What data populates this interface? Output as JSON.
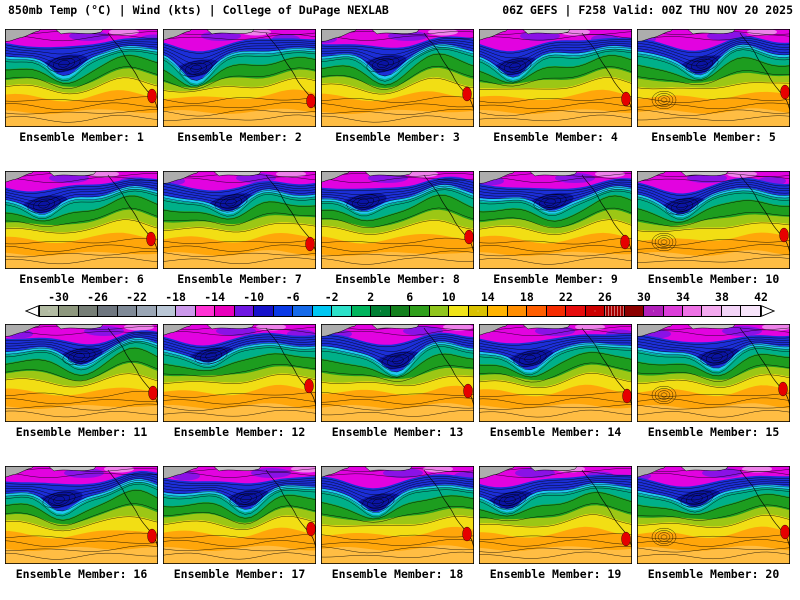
{
  "header": {
    "left": "850mb Temp (°C) | Wind (kts) | College of DuPage NEXLAB",
    "right": "06Z GEFS | F258 Valid: 00Z THU NOV 20 2025"
  },
  "panel_caption_prefix": "Ensemble Member:",
  "rows": [
    {
      "members": [
        1,
        2,
        3,
        4,
        5
      ]
    },
    {
      "members": [
        6,
        7,
        8,
        9,
        10
      ]
    },
    {
      "members": [
        11,
        12,
        13,
        14,
        15
      ]
    },
    {
      "members": [
        16,
        17,
        18,
        19,
        20
      ]
    }
  ],
  "panels": [
    {
      "member": 1,
      "caption": "Ensemble Member: 1"
    },
    {
      "member": 2,
      "caption": "Ensemble Member: 2"
    },
    {
      "member": 3,
      "caption": "Ensemble Member: 3"
    },
    {
      "member": 4,
      "caption": "Ensemble Member: 4"
    },
    {
      "member": 5,
      "caption": "Ensemble Member: 5"
    },
    {
      "member": 6,
      "caption": "Ensemble Member: 6"
    },
    {
      "member": 7,
      "caption": "Ensemble Member: 7"
    },
    {
      "member": 8,
      "caption": "Ensemble Member: 8"
    },
    {
      "member": 9,
      "caption": "Ensemble Member: 9"
    },
    {
      "member": 10,
      "caption": "Ensemble Member: 10"
    },
    {
      "member": 11,
      "caption": "Ensemble Member: 11"
    },
    {
      "member": 12,
      "caption": "Ensemble Member: 12"
    },
    {
      "member": 13,
      "caption": "Ensemble Member: 13"
    },
    {
      "member": 14,
      "caption": "Ensemble Member: 14"
    },
    {
      "member": 15,
      "caption": "Ensemble Member: 15"
    },
    {
      "member": 16,
      "caption": "Ensemble Member: 16"
    },
    {
      "member": 17,
      "caption": "Ensemble Member: 17"
    },
    {
      "member": 18,
      "caption": "Ensemble Member: 18"
    },
    {
      "member": 19,
      "caption": "Ensemble Member: 19"
    },
    {
      "member": 20,
      "caption": "Ensemble Member: 20"
    }
  ],
  "colorbar": {
    "unit": "°C",
    "range": [
      -32,
      42
    ],
    "tick_values": [
      -30,
      -26,
      -22,
      -18,
      -14,
      -10,
      -6,
      -2,
      2,
      6,
      10,
      14,
      18,
      22,
      26,
      30,
      34,
      38,
      42
    ],
    "arrow_color": "#ffffff",
    "outline_color": "#000000",
    "segments": [
      {
        "from": -32,
        "to": -30,
        "color": "#b2bba2",
        "pattern": "stipple"
      },
      {
        "from": -30,
        "to": -28,
        "color": "#8e987e",
        "pattern": "none"
      },
      {
        "from": -28,
        "to": -26,
        "color": "#767e76",
        "pattern": "none"
      },
      {
        "from": -26,
        "to": -24,
        "color": "#6e767f",
        "pattern": "none"
      },
      {
        "from": -24,
        "to": -22,
        "color": "#7f8a97",
        "pattern": "none"
      },
      {
        "from": -22,
        "to": -20,
        "color": "#9aa6b5",
        "pattern": "none"
      },
      {
        "from": -20,
        "to": -18,
        "color": "#bac7d6",
        "pattern": "none"
      },
      {
        "from": -18,
        "to": -16,
        "color": "#cc98eb",
        "pattern": "none"
      },
      {
        "from": -16,
        "to": -14,
        "color": "#ff32d4",
        "pattern": "none"
      },
      {
        "from": -14,
        "to": -12,
        "color": "#e800bc",
        "pattern": "none"
      },
      {
        "from": -12,
        "to": -10,
        "color": "#6f17e2",
        "pattern": "none"
      },
      {
        "from": -10,
        "to": -8,
        "color": "#1612ca",
        "pattern": "none"
      },
      {
        "from": -8,
        "to": -6,
        "color": "#0a3ae6",
        "pattern": "none"
      },
      {
        "from": -6,
        "to": -4,
        "color": "#156ae9",
        "pattern": "none"
      },
      {
        "from": -4,
        "to": -2,
        "color": "#00c7f2",
        "pattern": "none"
      },
      {
        "from": -2,
        "to": 0,
        "color": "#2de1c9",
        "pattern": "none"
      },
      {
        "from": 0,
        "to": 2,
        "color": "#00b45c",
        "pattern": "none"
      },
      {
        "from": 2,
        "to": 4,
        "color": "#008034",
        "pattern": "stipple"
      },
      {
        "from": 4,
        "to": 6,
        "color": "#13801d",
        "pattern": "none"
      },
      {
        "from": 6,
        "to": 8,
        "color": "#2f9f1b",
        "pattern": "none"
      },
      {
        "from": 8,
        "to": 10,
        "color": "#90c51c",
        "pattern": "none"
      },
      {
        "from": 10,
        "to": 12,
        "color": "#f0e418",
        "pattern": "none"
      },
      {
        "from": 12,
        "to": 14,
        "color": "#d9c100",
        "pattern": "stipple"
      },
      {
        "from": 14,
        "to": 16,
        "color": "#ffb300",
        "pattern": "none"
      },
      {
        "from": 16,
        "to": 18,
        "color": "#ff8d00",
        "pattern": "none"
      },
      {
        "from": 18,
        "to": 20,
        "color": "#ff5e00",
        "pattern": "none"
      },
      {
        "from": 20,
        "to": 22,
        "color": "#f52b00",
        "pattern": "none"
      },
      {
        "from": 22,
        "to": 24,
        "color": "#e60c0c",
        "pattern": "none"
      },
      {
        "from": 24,
        "to": 26,
        "color": "#cc0000",
        "pattern": "stipple"
      },
      {
        "from": 26,
        "to": 28,
        "color": "#a80000",
        "pattern": "hatch"
      },
      {
        "from": 28,
        "to": 30,
        "color": "#8c0000",
        "pattern": "none"
      },
      {
        "from": 30,
        "to": 32,
        "color": "#b120ba",
        "pattern": "stipple"
      },
      {
        "from": 32,
        "to": 34,
        "color": "#dc3ed9",
        "pattern": "none"
      },
      {
        "from": 34,
        "to": 36,
        "color": "#ee72e5",
        "pattern": "none"
      },
      {
        "from": 36,
        "to": 38,
        "color": "#f4aaef",
        "pattern": "none"
      },
      {
        "from": 38,
        "to": 40,
        "color": "#f3d4f7",
        "pattern": "none"
      },
      {
        "from": 40,
        "to": 42,
        "color": "#f7e4fa",
        "pattern": "none"
      }
    ]
  },
  "map_palette": {
    "magenta": "#e203e0",
    "purple": "#8a12e6",
    "pink": "#ee82ea",
    "blue": "#1c2fd8",
    "blue_dark": "#0a14a4",
    "cyan": "#1fc9f0",
    "teal": "#00b089",
    "green": "#1d9d1f",
    "yellow_green": "#9cc715",
    "yellow": "#f2de14",
    "orange": "#ffa60a",
    "orange_light": "#ffc14d",
    "red": "#e60000",
    "land": "#adadad",
    "land_light": "#c6c6c6",
    "contour": "#000000"
  }
}
